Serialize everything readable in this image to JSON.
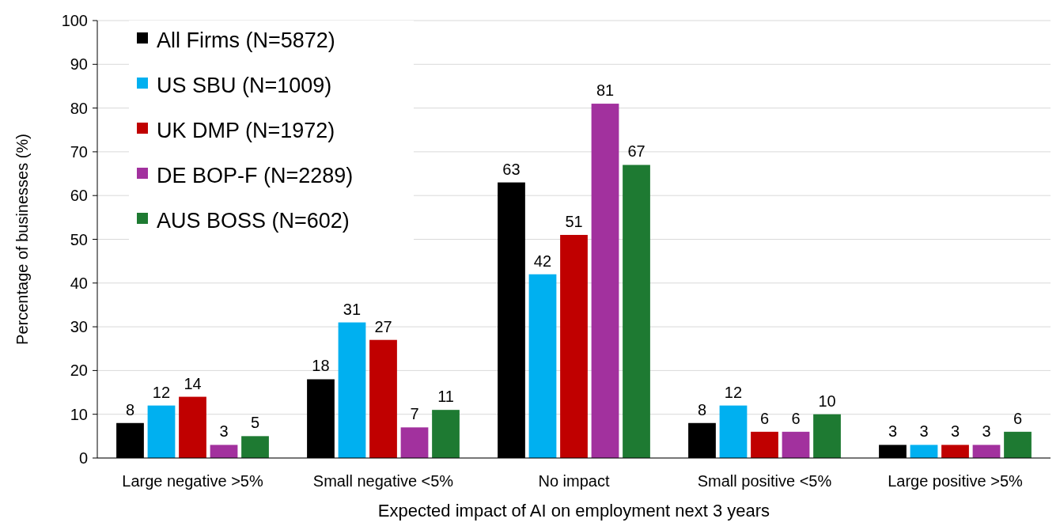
{
  "chart_data": {
    "type": "bar",
    "xlabel": "Expected impact of AI on employment next 3 years",
    "ylabel": "Percentage of businesses (%)",
    "categories": [
      "Large negative >5%",
      "Small negative <5%",
      "No impact",
      "Small positive <5%",
      "Large positive >5%"
    ],
    "series": [
      {
        "name": "All Firms (N=5872)",
        "color": "#000000",
        "values": [
          8,
          18,
          63,
          8,
          3
        ]
      },
      {
        "name": "US SBU (N=1009)",
        "color": "#00b0f0",
        "values": [
          12,
          31,
          42,
          12,
          3
        ]
      },
      {
        "name": "UK DMP (N=1972)",
        "color": "#c00000",
        "values": [
          14,
          27,
          51,
          6,
          3
        ]
      },
      {
        "name": "DE BOP-F (N=2289)",
        "color": "#a2319e",
        "values": [
          3,
          7,
          81,
          6,
          3
        ]
      },
      {
        "name": "AUS BOSS (N=602)",
        "color": "#1e7a32",
        "values": [
          5,
          11,
          67,
          10,
          6
        ]
      }
    ],
    "ylim": [
      0,
      100
    ],
    "yticks": [
      0,
      10,
      20,
      30,
      40,
      50,
      60,
      70,
      80,
      90,
      100
    ],
    "grid": "y",
    "legend": "top left",
    "data_labels": true
  }
}
